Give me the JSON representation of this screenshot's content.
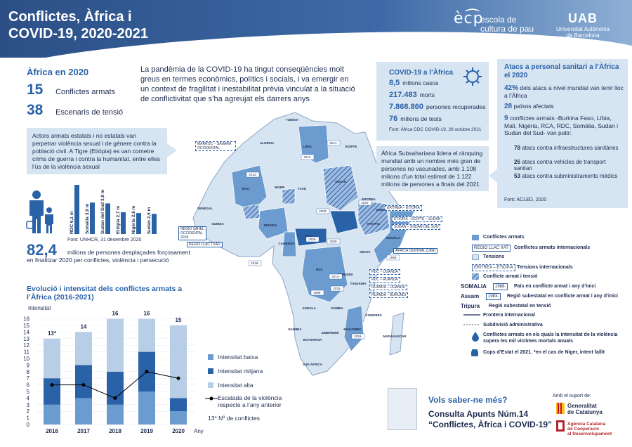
{
  "header": {
    "title_line1": "Conflictes, Àfrica i",
    "title_line2": "COVID-19, 2020-2021",
    "ecp_mark": "èc͡p",
    "ecp_line1": "escola de",
    "ecp_line2": "cultura de pau",
    "uab_mark": "UAB",
    "uab_line1": "Universitat Autònoma",
    "uab_line2": "de Barcelona"
  },
  "africa2020": {
    "title": "Àfrica en 2020",
    "conflicts_n": "15",
    "conflicts_label": "Conflictes armats",
    "tension_n": "38",
    "tension_label": "Escenaris de tensió"
  },
  "intro": "La pandèmia de la COVID-19 ha tingut conseqüències molt greus en termes econòmics, polítics i socials, i va emergir en un context de fragilitat i inestabilitat prèvia vinculat a la situació de conflictivitat que s’ha agreujat els darrers anys",
  "violence_callout": "Actors armats estatals i no estatals van perpetrar violència sexual i de gènere contra la població civil. A Tigre (Etiòpia) es van cometre crims de guerra i contra la humanitat, entre elles l’ús de la violència sexual",
  "displaced": {
    "source": "Font: UNHCR, 31 desembre 2020",
    "number": "82,4",
    "text1": "milions de persones desplaçades forçosament",
    "text2": "en finalitzar 2020 per conflictes, violència i persecució"
  },
  "chart_data": [
    {
      "type": "bar",
      "categories": [
        "RDC 6,1 m",
        "Somàlia 3,9 m",
        "Sudan del Sud 3,8 m",
        "Etiòpia 2,7 m",
        "Nigèria 2,6 m",
        "Sudan 2,5 m"
      ],
      "values": [
        6.1,
        3.9,
        3.8,
        2.7,
        2.6,
        2.5
      ],
      "title": "",
      "color": "#2a62a8"
    },
    {
      "type": "bar",
      "title": "Evolució i intensitat dels conflictes armats a l’Àfrica (2016-2021)",
      "ylabel": "Intensitat",
      "xlabel": "Any",
      "categories": [
        "2016",
        "2017",
        "2018",
        "2019",
        "2020"
      ],
      "yticks": [
        "0",
        "1",
        "2",
        "3",
        "4",
        "5",
        "6",
        "7",
        "8",
        "9",
        "10",
        "11",
        "12",
        "13",
        "14",
        "15",
        "16"
      ],
      "ylim": [
        0,
        16
      ],
      "series": [
        {
          "name": "Intensitat baixa",
          "values": [
            3,
            4,
            3,
            5,
            2
          ],
          "color": "#6c9bd0"
        },
        {
          "name": "Intensitat mitjana",
          "values": [
            4,
            5,
            5,
            6,
            2
          ],
          "color": "#2a62a8"
        },
        {
          "name": "Intensitat alta",
          "values": [
            6,
            5,
            8,
            5,
            11
          ],
          "color": "#b8cde6"
        }
      ],
      "totals_labels": [
        "13*",
        "14",
        "16",
        "16",
        "15"
      ],
      "line": {
        "name": "Escalada de la violència respecte a l’any anterior",
        "values": [
          6,
          6,
          4,
          8,
          7
        ]
      },
      "footnote_legend": "13*  Nº de conflictes"
    }
  ],
  "covid": {
    "title": "COVID-19 a l’Àfrica",
    "cases_n": "8,5",
    "cases_label": "milions casos",
    "deaths_n": "217.483",
    "deaths_label": "morts",
    "recovered_n": "7.868.860",
    "recovered_label": "persones recuperades",
    "tests_n": "76",
    "tests_label": "milions de tests",
    "source": "Font: Àfrica CDC COVID-19, 26 octubre 2021"
  },
  "vaccination": "Àfrica Subsahariana lidera el rànquing mundial amb un nombre més gran de persones no vacunades, amb 1.108 milions d’un total estimat de 1.122 milions de persones a finals del 2021",
  "attacks": {
    "title": "Atacs a personal sanitari a l’Àfrica el 2020",
    "pct_n": "42%",
    "pct_text": "dels atacs a nivel mundial van tenir lloc a l’Àfrica",
    "countries_n": "28",
    "countries_text": "països afectats",
    "conflicts_n": "9",
    "conflicts_text": "conflictes armats -Burkina Faso, Líbia, Mali, Nigèria, RCA, RDC, Somàlia, Sudan i Sudan del Sud- van patir:",
    "sub1_n": "78",
    "sub1_t": "atacs contra infraestructures sanitàries",
    "sub2_n": "26",
    "sub2_t": "atacs contra vehicles de transport sanitari",
    "sub3_n": "53",
    "sub3_t": "atacs contra subministraments mèdics",
    "source": "Font: ACLED, 2020"
  },
  "map": {
    "labels": [
      {
        "t": "TUNÍSIA"
      },
      {
        "t": "ALGÈRIA"
      },
      {
        "t": "LÍBIA"
      },
      {
        "t": "EGIPTE"
      },
      {
        "t": "MALI"
      },
      {
        "t": "NÍGER"
      },
      {
        "t": "TXAD"
      },
      {
        "t": "SUDAN"
      },
      {
        "t": "ERITREA"
      },
      {
        "t": "ETIÒPIA"
      },
      {
        "t": "SOMÀLIA"
      },
      {
        "t": "KENYA"
      },
      {
        "t": "TANZÀNIA"
      },
      {
        "t": "RDC"
      },
      {
        "t": "RCA"
      },
      {
        "t": "NIGÈRIA"
      },
      {
        "t": "CAMERUN"
      },
      {
        "t": "ANGOLA"
      },
      {
        "t": "ZÀMBIA"
      },
      {
        "t": "MOÇAMBIC"
      },
      {
        "t": "ZIMBÀBWE"
      },
      {
        "t": "MADAGASCAR"
      },
      {
        "t": "SUD-ÀFRICA"
      },
      {
        "t": "NAMÍBIA"
      },
      {
        "t": "BOTSWANA"
      },
      {
        "t": "COMORES"
      },
      {
        "t": "DJIBOUTI"
      },
      {
        "t": "GUINEA"
      },
      {
        "t": "SENEGAL"
      },
      {
        "t": "BURUNDI"
      }
    ],
    "tags": [
      {
        "t": "MARROC – SÀHARA OCCIDENTAL"
      },
      {
        "t": "REGIÓ SAHEL OCCIDENTAL 2018"
      },
      {
        "t": "REGIÓ LLAC TXAD"
      },
      {
        "t": "ERITREA – ETIÒPIA"
      },
      {
        "t": "ETIÒPIA – EGIPTE – SUDAN"
      },
      {
        "t": "SUDAN – SUDAN DEL SUD"
      },
      {
        "t": "ÀFRICA CENTRAL (LRA)"
      },
      {
        "t": "RDC – UGANDA"
      },
      {
        "t": "RDC – RUANDA"
      },
      {
        "t": "RUANDA – UGANDA"
      },
      {
        "t": "RUANDA – BURUNDI"
      }
    ],
    "years": [
      "2011-",
      "2014-",
      "2012-",
      "2006-",
      "2009-",
      "2003-",
      "1988-",
      "1998-",
      "2014-",
      "2015-",
      "2019-",
      "2020-",
      "2018-"
    ]
  },
  "map_legend": {
    "conflicts": "Conflictes armats",
    "intl_box": "REGIÓ LLAC XAT",
    "intl": "Conflictes armats internacionals",
    "tensions": "Tensions",
    "intl_tension_box": "ERITREA – ETIÒPIA",
    "intl_tension": "Tensions internacionals",
    "conflict_tension": "Conflicte armat i tensió",
    "somalia": "SOMALIA",
    "somalia_year": "1988-",
    "somalia_text": "País en conflicte armat i any d’inici",
    "assam": "Assam",
    "assam_year": "1983-",
    "assam_text": "Regió subestatal en conflicte armat i any d’inici",
    "tripura": "Tripura",
    "tripura_text": "Regió subestatal en tensió",
    "border": "Frontera internacional",
    "subdiv": "Subdivisió administrativa",
    "intensity": "Conflictes armats en els quals la intensitat de la violència supera les mil víctimes mortals anuals",
    "coups": "Cops d’Estat el 2021. *en el cas de Níger, intent fallit"
  },
  "more": {
    "title": "Vols saber-ne més?",
    "line1": "Consulta Apunts Núm.14",
    "line2": "“Conflictes, Àfrica i COVID-19”"
  },
  "support": {
    "label": "Amb el suport de:",
    "gen1": "Generalitat",
    "gen2": "de Catalunya",
    "acc1": "Agència Catalana",
    "acc2": "de Cooperació",
    "acc3": "al Desenvolupament"
  }
}
